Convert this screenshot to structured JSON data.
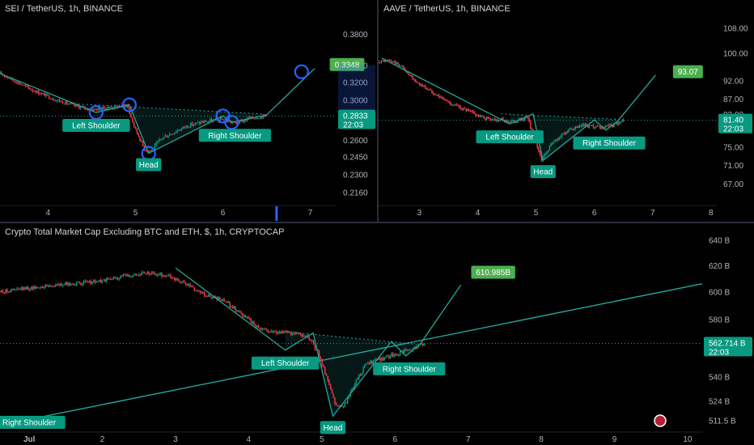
{
  "colors": {
    "up": "#089981",
    "down": "#f23645",
    "pattern": "#26a69a",
    "label_bg": "#089981",
    "target_bg": "#4caf50",
    "axis_text": "#b2b5be",
    "price_tag": "#089981",
    "circle": "#2962ff"
  },
  "panels": [
    {
      "title": "SEI / TetherUS, 1h, BINANCE",
      "price_tag": {
        "value": "0.2833",
        "countdown": "22:03"
      },
      "target_label": "0.3348",
      "labels": {
        "left": "Left Shoulder",
        "head": "Head",
        "right": "Right Shoulder"
      },
      "chart_data": {
        "type": "line",
        "x_ticks": [
          4,
          5,
          6,
          7
        ],
        "xlim": [
          3.45,
          7.3
        ],
        "y_scale": "log",
        "y_ticks": [
          "0.3800",
          "0.3400",
          "0.3200",
          "0.3000",
          "0.2833",
          "0.2600",
          "0.2450",
          "0.2300",
          "0.2160"
        ],
        "ylim": [
          0.207,
          0.405
        ],
        "closes": [
          [
            3.45,
            0.33
          ],
          [
            3.8,
            0.312
          ],
          [
            4.1,
            0.3
          ],
          [
            4.3,
            0.294
          ],
          [
            4.5,
            0.29
          ],
          [
            4.7,
            0.292
          ],
          [
            4.9,
            0.295
          ],
          [
            4.98,
            0.274
          ],
          [
            5.1,
            0.252
          ],
          [
            5.18,
            0.25
          ],
          [
            5.3,
            0.262
          ],
          [
            5.45,
            0.268
          ],
          [
            5.6,
            0.274
          ],
          [
            5.8,
            0.278
          ],
          [
            6.0,
            0.28
          ],
          [
            6.15,
            0.276
          ],
          [
            6.3,
            0.281
          ],
          [
            6.5,
            0.284
          ]
        ],
        "pattern": [
          [
            3.45,
            0.33
          ],
          [
            4.55,
            0.287
          ],
          [
            4.93,
            0.295
          ],
          [
            5.15,
            0.248
          ],
          [
            6.0,
            0.2835
          ],
          [
            6.1,
            0.277
          ],
          [
            6.5,
            0.2845
          ],
          [
            7.05,
            0.336
          ]
        ],
        "neckline": [
          [
            4.3,
            0.296
          ],
          [
            6.45,
            0.2855
          ]
        ],
        "circles": [
          [
            4.55,
            0.287
          ],
          [
            4.93,
            0.295
          ],
          [
            5.15,
            0.248
          ],
          [
            6.0,
            0.2835
          ],
          [
            6.1,
            0.277
          ],
          [
            6.9,
            0.332
          ]
        ],
        "target": 0.3348,
        "last": 0.2833
      }
    },
    {
      "title": "AAVE / TetherUS, 1h, BINANCE",
      "price_tag": {
        "value": "81.40",
        "countdown": "22:03"
      },
      "target_label": "93.07",
      "labels": {
        "left": "Left Shoulder",
        "head": "Head",
        "right": "Right Shoulder"
      },
      "chart_data": {
        "type": "line",
        "x_ticks": [
          3,
          4,
          5,
          6,
          7,
          8
        ],
        "xlim": [
          2.3,
          8.1
        ],
        "y_scale": "log",
        "y_ticks": [
          "108.00",
          "100.00",
          "92.00",
          "87.00",
          "83.00",
          "81.40",
          "75.00",
          "71.00",
          "67.00"
        ],
        "ylim": [
          63,
          112
        ],
        "closes": [
          [
            2.3,
            97.5
          ],
          [
            2.5,
            97.8
          ],
          [
            2.7,
            96.0
          ],
          [
            2.9,
            92.0
          ],
          [
            3.2,
            89.0
          ],
          [
            3.5,
            86.0
          ],
          [
            3.8,
            84.0
          ],
          [
            4.1,
            82.0
          ],
          [
            4.4,
            81.5
          ],
          [
            4.6,
            81.0
          ],
          [
            4.85,
            82.0
          ],
          [
            5.0,
            76.0
          ],
          [
            5.1,
            72.0
          ],
          [
            5.25,
            75.5
          ],
          [
            5.5,
            78.5
          ],
          [
            5.8,
            80.0
          ],
          [
            6.1,
            79.5
          ],
          [
            6.3,
            80.0
          ],
          [
            6.5,
            81.4
          ]
        ],
        "pattern": [
          [
            2.35,
            98.5
          ],
          [
            4.55,
            80.5
          ],
          [
            4.95,
            83.0
          ],
          [
            5.12,
            72.0
          ],
          [
            6.0,
            81.5
          ],
          [
            6.2,
            79.0
          ],
          [
            6.4,
            81.2
          ],
          [
            7.05,
            93.5
          ]
        ],
        "neckline": [
          [
            4.4,
            83.0
          ],
          [
            6.5,
            81.6
          ]
        ],
        "circles": [],
        "target": 93.07,
        "last": 81.4
      }
    },
    {
      "title": "Crypto Total Market Cap Excluding BTC and ETH, $, 1h, CRYPTOCAP",
      "price_tag": {
        "value": "562.714 B",
        "countdown": "22:03"
      },
      "target_label": "610.985B",
      "labels": {
        "left": "Left Shoulder",
        "head": "Head",
        "right": "Right Shoulder",
        "outer_right": "Right Shoulder"
      },
      "chart_data": {
        "type": "line",
        "x_ticks": [
          "Jul",
          "2",
          "3",
          "4",
          "5",
          "6",
          "7",
          "8",
          "9",
          "10"
        ],
        "xlim": [
          0.6,
          10.2
        ],
        "y_scale": "log",
        "y_ticks": [
          "640 B",
          "620 B",
          "600 B",
          "580 B",
          "562.714 B",
          "540 B",
          "524 B",
          "511.5 B"
        ],
        "ylim": [
          505,
          648
        ],
        "closes": [
          [
            0.6,
            600
          ],
          [
            0.9,
            602
          ],
          [
            1.2,
            604
          ],
          [
            1.6,
            606
          ],
          [
            2.0,
            608
          ],
          [
            2.3,
            612
          ],
          [
            2.6,
            614
          ],
          [
            2.9,
            612
          ],
          [
            3.2,
            604
          ],
          [
            3.4,
            598
          ],
          [
            3.7,
            592
          ],
          [
            3.9,
            584
          ],
          [
            4.1,
            575
          ],
          [
            4.3,
            571
          ],
          [
            4.6,
            570
          ],
          [
            4.8,
            568
          ],
          [
            4.95,
            556
          ],
          [
            5.1,
            535
          ],
          [
            5.2,
            520
          ],
          [
            5.3,
            520
          ],
          [
            5.45,
            535
          ],
          [
            5.6,
            548
          ],
          [
            5.8,
            552
          ],
          [
            6.0,
            555
          ],
          [
            6.2,
            558
          ],
          [
            6.4,
            562
          ]
        ],
        "pattern": [
          [
            3.0,
            618
          ],
          [
            4.5,
            558
          ],
          [
            4.88,
            570
          ],
          [
            5.15,
            514
          ],
          [
            5.95,
            564
          ],
          [
            6.15,
            554
          ],
          [
            6.35,
            562.7
          ],
          [
            6.9,
            605
          ]
        ],
        "neckline": [
          [
            4.3,
            572
          ],
          [
            6.3,
            562
          ]
        ],
        "trendline": [
          [
            0.6,
            512
          ],
          [
            1.0,
            512
          ],
          [
            10.2,
            606
          ]
        ],
        "target": 610.985,
        "last": 562.714
      }
    }
  ]
}
